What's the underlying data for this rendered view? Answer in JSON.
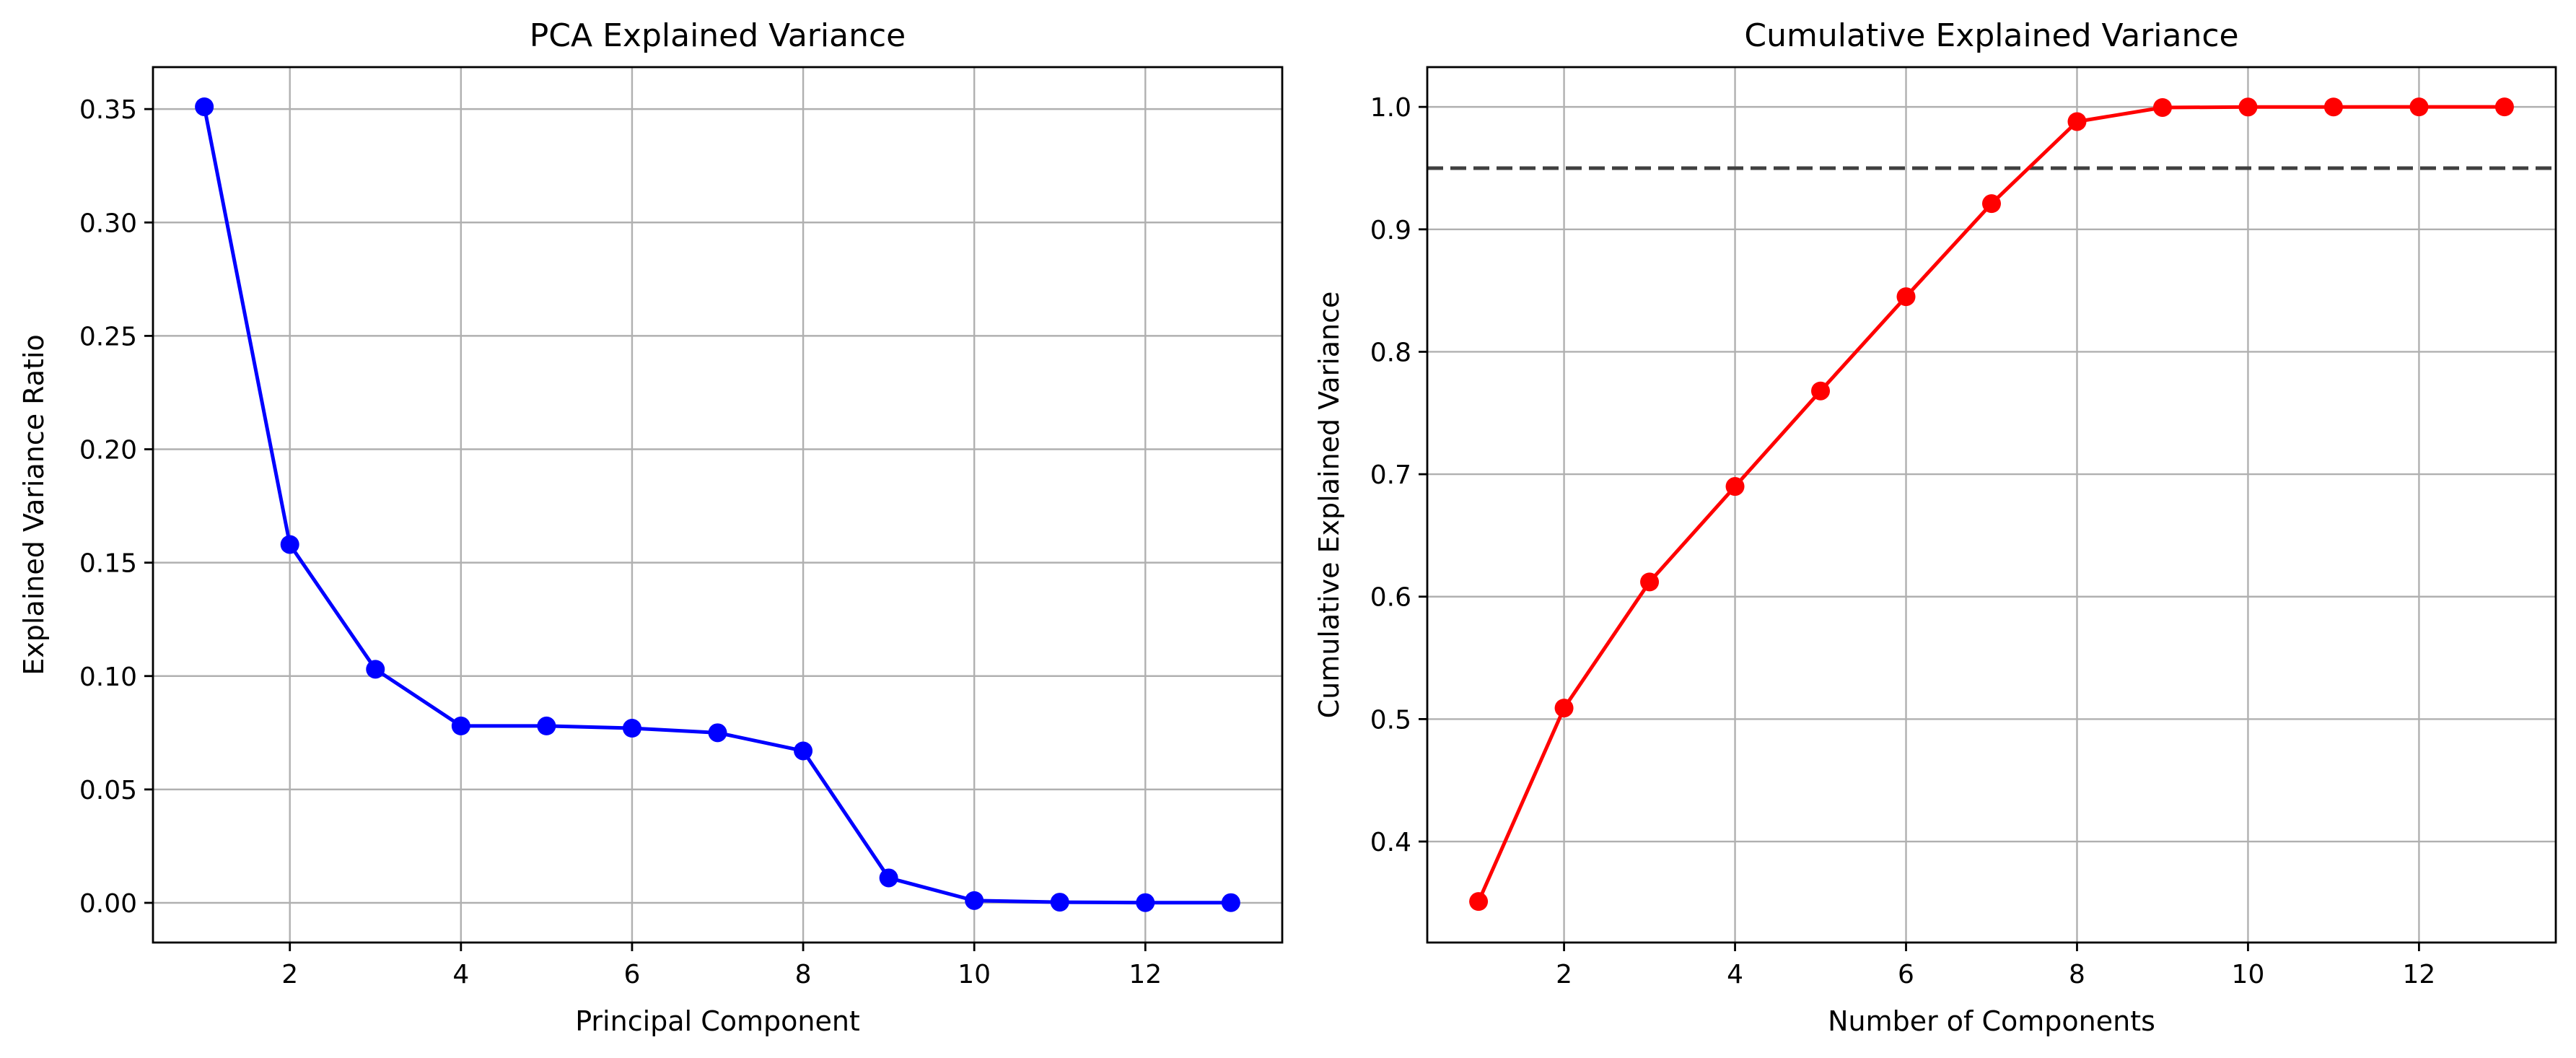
{
  "chart_data": [
    {
      "type": "line",
      "title": "PCA Explained Variance",
      "xlabel": "Principal Component",
      "ylabel": "Explained Variance Ratio",
      "x": [
        1,
        2,
        3,
        4,
        5,
        6,
        7,
        8,
        9,
        10,
        11,
        12,
        13
      ],
      "series": [
        {
          "values": [
            0.351,
            0.158,
            0.103,
            0.078,
            0.078,
            0.077,
            0.075,
            0.067,
            0.011,
            0.001,
            0.0003,
            0.0001,
            0.0001
          ]
        }
      ],
      "xlim": [
        0.4,
        13.6
      ],
      "ylim": [
        -0.0175,
        0.3685
      ],
      "xticks": [
        2,
        4,
        6,
        8,
        10,
        12
      ],
      "xtick_labels": [
        "2",
        "4",
        "6",
        "8",
        "10",
        "12"
      ],
      "yticks": [
        0,
        0.05,
        0.1,
        0.15,
        0.2,
        0.25,
        0.3,
        0.35
      ],
      "ytick_labels": [
        "0.00",
        "0.05",
        "0.10",
        "0.15",
        "0.20",
        "0.25",
        "0.30",
        "0.35"
      ],
      "grid": true,
      "marker": "circle",
      "color": "#0000ff"
    },
    {
      "type": "line",
      "title": "Cumulative Explained Variance",
      "xlabel": "Number of Components",
      "ylabel": "Cumulative Explained Variance",
      "x": [
        1,
        2,
        3,
        4,
        5,
        6,
        7,
        8,
        9,
        10,
        11,
        12,
        13
      ],
      "series": [
        {
          "values": [
            0.351,
            0.509,
            0.612,
            0.69,
            0.768,
            0.845,
            0.921,
            0.988,
            0.9995,
            0.9999,
            0.99995,
            0.99999,
            1.0
          ]
        }
      ],
      "reference_line": {
        "y": 0.95,
        "style": "dashed",
        "color": "#404040"
      },
      "xlim": [
        0.4,
        13.6
      ],
      "ylim": [
        0.3175,
        1.0325
      ],
      "xticks": [
        2,
        4,
        6,
        8,
        10,
        12
      ],
      "xtick_labels": [
        "2",
        "4",
        "6",
        "8",
        "10",
        "12"
      ],
      "yticks": [
        0.4,
        0.5,
        0.6,
        0.7,
        0.8,
        0.9,
        1.0
      ],
      "ytick_labels": [
        "0.4",
        "0.5",
        "0.6",
        "0.7",
        "0.8",
        "0.9",
        "1.0"
      ],
      "grid": true,
      "marker": "circle",
      "color": "#ff0000"
    }
  ]
}
